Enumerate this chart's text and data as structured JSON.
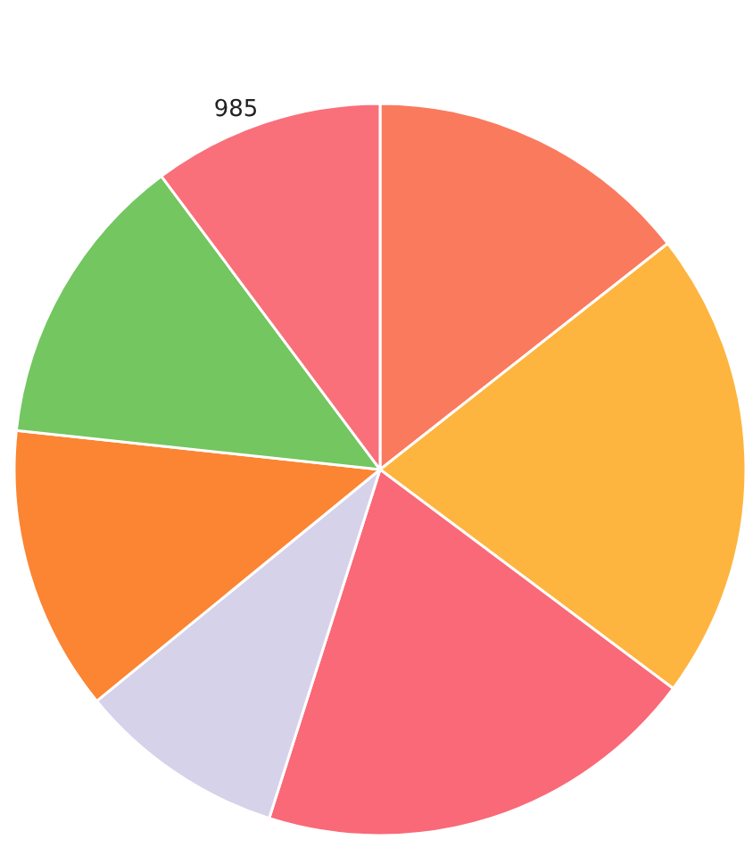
{
  "chart_data": {
    "type": "pie",
    "categories": [
      null,
      null,
      null,
      null,
      null,
      null,
      null
    ],
    "values": [
      1391,
      2009,
      1902,
      888,
      1217,
      1265,
      985
    ],
    "colors": [
      "#fa7a5e",
      "#fdb53f",
      "#f96977",
      "#d5d2ea",
      "#fb8533",
      "#73c660",
      "#f96f7a"
    ],
    "value_labels": [
      null,
      null,
      null,
      null,
      null,
      null,
      "985"
    ],
    "legend": false
  }
}
